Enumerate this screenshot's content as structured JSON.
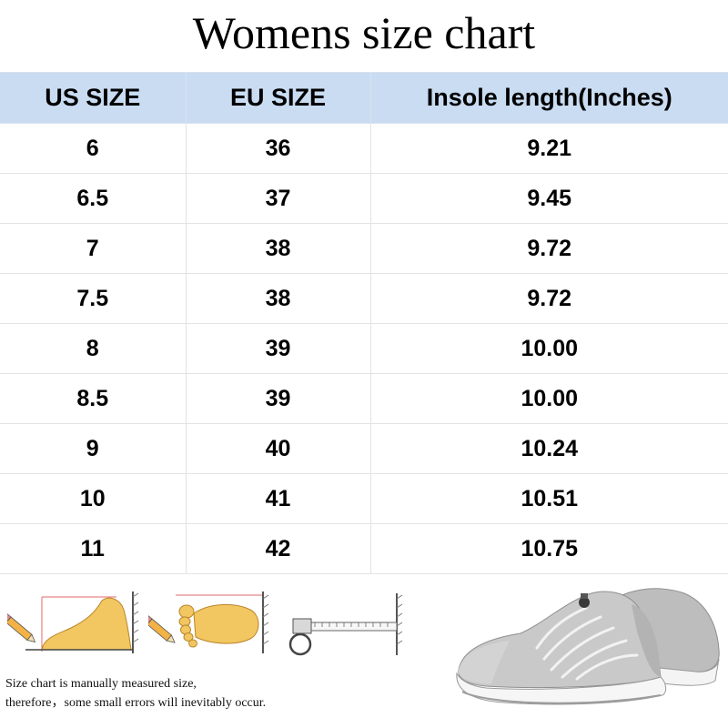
{
  "title": "Womens size chart",
  "table": {
    "headers": [
      "US SIZE",
      "EU SIZE",
      "Insole length(Inches)"
    ],
    "rows": [
      [
        "6",
        "36",
        "9.21"
      ],
      [
        "6.5",
        "37",
        "9.45"
      ],
      [
        "7",
        "38",
        "9.72"
      ],
      [
        "7.5",
        "38",
        "9.72"
      ],
      [
        "8",
        "39",
        "10.00"
      ],
      [
        "8.5",
        "39",
        "10.00"
      ],
      [
        "9",
        "40",
        "10.24"
      ],
      [
        "10",
        "41",
        "10.51"
      ],
      [
        "11",
        "42",
        "10.75"
      ]
    ]
  },
  "note": {
    "line1": "Size chart is manually measured size,",
    "line2": "therefore，some small errors will inevitably occur."
  },
  "colors": {
    "header_bg": "#c9dcf2",
    "foot": "#f2c660",
    "shoe_mesh": "#c9c9c9",
    "shoe_sole": "#f4f4f4"
  },
  "icons": [
    "foot-side-icon",
    "foot-top-icon",
    "ruler-measure-icon",
    "sneaker-image"
  ]
}
